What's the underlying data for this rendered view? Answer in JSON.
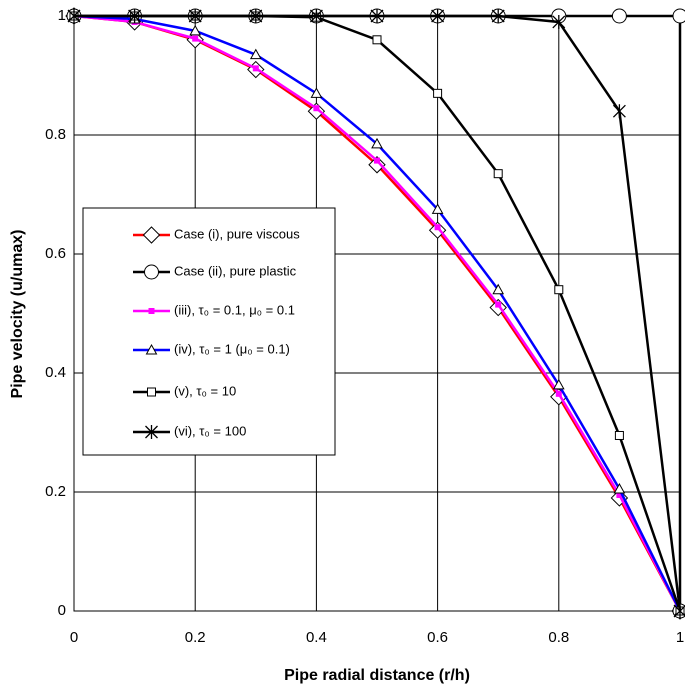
{
  "chart_data": {
    "type": "line",
    "xlabel": "Pipe radial distance (r/h)",
    "ylabel": "Pipe velocity (u/umax)",
    "xlim": [
      0,
      1
    ],
    "ylim": [
      0,
      1
    ],
    "xticks": [
      0,
      0.2,
      0.4,
      0.6,
      0.8,
      1
    ],
    "yticks": [
      0,
      0.2,
      0.4,
      0.6,
      0.8,
      1
    ],
    "grid": true,
    "series": [
      {
        "name": "Case (i), pure viscous",
        "color": "#ff0000",
        "marker": "diamond",
        "x": [
          0,
          0.1,
          0.2,
          0.3,
          0.4,
          0.5,
          0.6,
          0.7,
          0.8,
          0.9,
          1
        ],
        "values": [
          1,
          0.99,
          0.96,
          0.91,
          0.84,
          0.75,
          0.64,
          0.51,
          0.36,
          0.19,
          0
        ]
      },
      {
        "name": "Case (ii), pure plastic",
        "color": "#000000",
        "marker": "circle",
        "x": [
          0,
          0.1,
          0.2,
          0.3,
          0.4,
          0.5,
          0.6,
          0.7,
          0.8,
          0.9,
          1,
          1
        ],
        "values": [
          1,
          1,
          1,
          1,
          1,
          1,
          1,
          1,
          1,
          1,
          1,
          0
        ]
      },
      {
        "name": "(iii),  τ₀ = 0.1, μ₀ = 0.1",
        "color": "#ff00ff",
        "marker": "smallsquare",
        "x": [
          0,
          0.1,
          0.2,
          0.3,
          0.4,
          0.5,
          0.6,
          0.7,
          0.8,
          0.9,
          1
        ],
        "values": [
          1,
          0.99,
          0.962,
          0.912,
          0.845,
          0.757,
          0.645,
          0.515,
          0.365,
          0.195,
          0
        ]
      },
      {
        "name": "(iv),  τ₀ = 1   (μ₀ = 0.1)",
        "color": "#0000ff",
        "marker": "triangle",
        "x": [
          0,
          0.1,
          0.2,
          0.3,
          0.4,
          0.5,
          0.6,
          0.7,
          0.8,
          0.9,
          1
        ],
        "values": [
          1,
          0.995,
          0.975,
          0.935,
          0.87,
          0.785,
          0.675,
          0.54,
          0.38,
          0.205,
          0
        ]
      },
      {
        "name": "(v),  τ₀ = 10",
        "color": "#000000",
        "marker": "square",
        "x": [
          0,
          0.1,
          0.2,
          0.3,
          0.4,
          0.5,
          0.6,
          0.7,
          0.8,
          0.9,
          1
        ],
        "values": [
          1,
          1,
          1,
          1,
          0.998,
          0.96,
          0.87,
          0.735,
          0.54,
          0.295,
          0
        ]
      },
      {
        "name": "(vi),  τ₀ = 100",
        "color": "#000000",
        "marker": "asterisk",
        "x": [
          0,
          0.1,
          0.2,
          0.3,
          0.4,
          0.5,
          0.6,
          0.7,
          0.8,
          0.9,
          1
        ],
        "values": [
          1,
          1,
          1,
          1,
          1,
          1,
          1,
          1,
          0.99,
          0.84,
          0
        ]
      }
    ]
  }
}
